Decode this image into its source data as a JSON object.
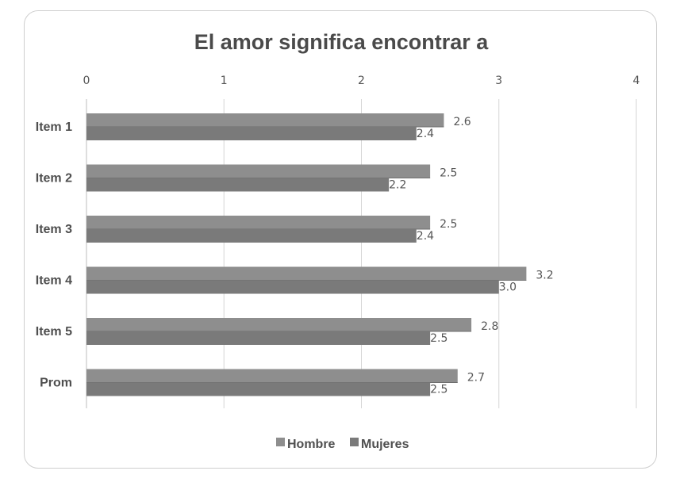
{
  "chart_data": {
    "type": "bar",
    "orientation": "horizontal",
    "title": "El amor significa encontrar a",
    "categories": [
      "Item 1",
      "Item 2",
      "Item 3",
      "Item 4",
      "Item 5",
      "Prom"
    ],
    "series": [
      {
        "name": "Hombre",
        "values": [
          2.6,
          2.5,
          2.5,
          3.2,
          2.8,
          2.7
        ],
        "labels": [
          "2.6",
          "2.5",
          "2.5",
          "3.2",
          "2.8",
          "2.7"
        ],
        "color": "#8e8e8e"
      },
      {
        "name": "Mujeres",
        "values": [
          2.4,
          2.2,
          2.4,
          3.0,
          2.5,
          2.5
        ],
        "labels": [
          "2.4",
          "2.2",
          "2.4",
          "3.0",
          "2.5",
          "2.5"
        ],
        "color": "#7a7a7a"
      }
    ],
    "xlim": [
      0,
      4
    ],
    "x_ticks": [
      "0",
      "1",
      "2",
      "3",
      "4"
    ],
    "axis_position": "top",
    "grid": true,
    "legend_position": "bottom"
  }
}
